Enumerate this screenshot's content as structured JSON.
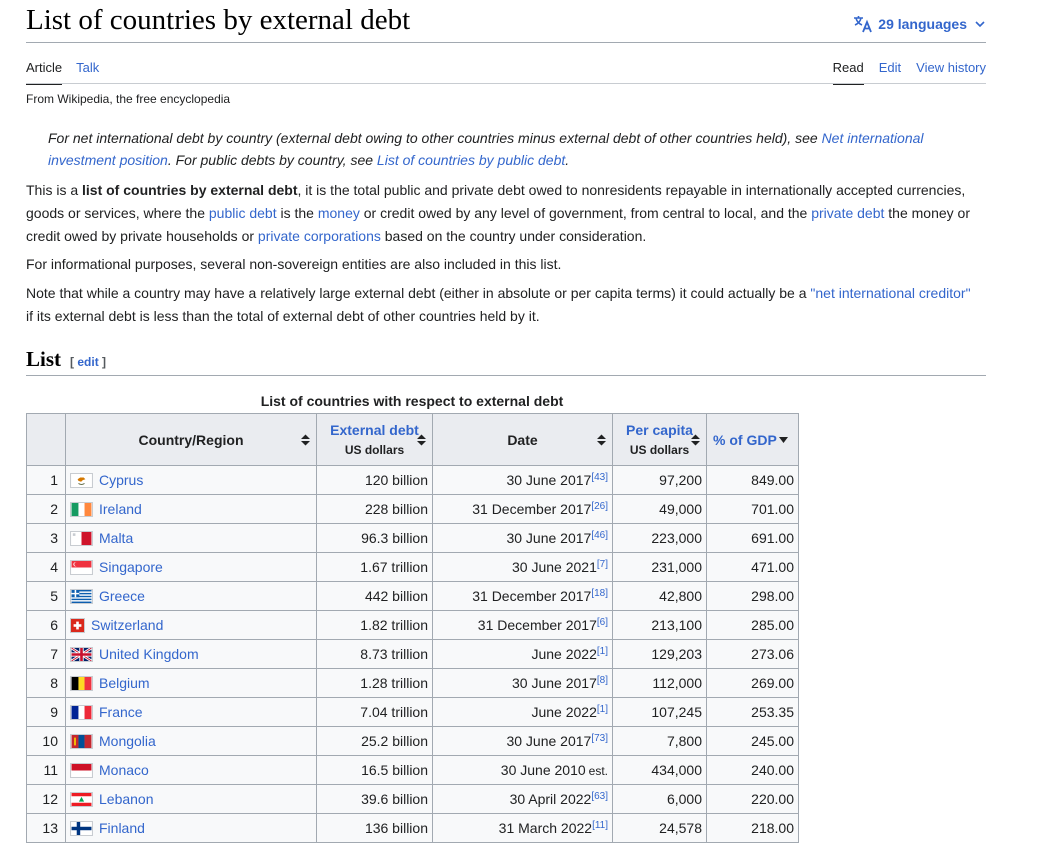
{
  "page": {
    "title": "List of countries by external debt",
    "languages": "29 languages",
    "tabs_left": [
      "Article",
      "Talk"
    ],
    "tabs_right": [
      "Read",
      "Edit",
      "View history"
    ],
    "tagline": "From Wikipedia, the free encyclopedia"
  },
  "hatnote": {
    "t1": "For net international debt by country (external debt owing to other countries minus external debt of other countries held), see ",
    "l1": "Net international investment position",
    "t2": ". For public debts by country, see ",
    "l2": "List of countries by public debt",
    "t3": "."
  },
  "intro": {
    "p1": {
      "t1": "This is a ",
      "b1": "list of countries by external debt",
      "t2": ", it is the total public and private debt owed to nonresidents repayable in internationally accepted currencies, goods or services, where the ",
      "l1": "public debt",
      "t3": " is the ",
      "l2": "money",
      "t4": " or credit owed by any level of government, from central to local, and the ",
      "l3": "private debt",
      "t5": " the money or credit owed by private households or ",
      "l4": "private corporations",
      "t6": " based on the country under consideration."
    },
    "p2": "For informational purposes, several non-sovereign entities are also included in this list.",
    "p3": {
      "t1": "Note that while a country may have a relatively large external debt (either in absolute or per capita terms) it could actually be a ",
      "l1": "\"net international creditor\"",
      "t2": " if its external debt is less than the total of external debt of other countries held by it."
    }
  },
  "section": {
    "heading": "List",
    "edit_open": "[ ",
    "edit": "edit",
    "edit_close": " ]"
  },
  "table": {
    "caption": "List of countries with respect to external debt",
    "headers": {
      "country": "Country/Region",
      "debt": "External debt",
      "debt_unit": "US dollars",
      "date": "Date",
      "percap": "Per capita",
      "percap_unit": "US dollars",
      "gdp": "% of GDP"
    },
    "rows": [
      {
        "rank": "1",
        "country": "Cyprus",
        "flag": "cyprus-flag-icon",
        "debt": "120 billion",
        "date": "30 June 2017",
        "ref": "[43]",
        "est": "",
        "percap": "97,200",
        "gdp": "849.00"
      },
      {
        "rank": "2",
        "country": "Ireland",
        "flag": "ireland-flag-icon",
        "debt": "228 billion",
        "date": "31 December 2017",
        "ref": "[26]",
        "est": "",
        "percap": "49,000",
        "gdp": "701.00"
      },
      {
        "rank": "3",
        "country": "Malta",
        "flag": "malta-flag-icon",
        "debt": "96.3 billion",
        "date": "30 June 2017",
        "ref": "[46]",
        "est": "",
        "percap": "223,000",
        "gdp": "691.00"
      },
      {
        "rank": "4",
        "country": "Singapore",
        "flag": "singapore-flag-icon",
        "debt": "1.67 trillion",
        "date": "30 June 2021",
        "ref": "[7]",
        "est": "",
        "percap": "231,000",
        "gdp": "471.00"
      },
      {
        "rank": "5",
        "country": "Greece",
        "flag": "greece-flag-icon",
        "debt": "442 billion",
        "date": "31 December 2017",
        "ref": "[18]",
        "est": "",
        "percap": "42,800",
        "gdp": "298.00"
      },
      {
        "rank": "6",
        "country": "Switzerland",
        "flag": "switzerland-flag-icon",
        "debt": "1.82 trillion",
        "date": "31 December 2017",
        "ref": "[6]",
        "est": "",
        "percap": "213,100",
        "gdp": "285.00"
      },
      {
        "rank": "7",
        "country": "United Kingdom",
        "flag": "united-kingdom-flag-icon",
        "debt": "8.73 trillion",
        "date": "June 2022",
        "ref": "[1]",
        "est": "",
        "percap": "129,203",
        "gdp": "273.06"
      },
      {
        "rank": "8",
        "country": "Belgium",
        "flag": "belgium-flag-icon",
        "debt": "1.28 trillion",
        "date": "30 June 2017",
        "ref": "[8]",
        "est": "",
        "percap": "112,000",
        "gdp": "269.00"
      },
      {
        "rank": "9",
        "country": "France",
        "flag": "france-flag-icon",
        "debt": "7.04 trillion",
        "date": "June 2022",
        "ref": "[1]",
        "est": "",
        "percap": "107,245",
        "gdp": "253.35"
      },
      {
        "rank": "10",
        "country": "Mongolia",
        "flag": "mongolia-flag-icon",
        "debt": "25.2 billion",
        "date": "30 June 2017",
        "ref": "[73]",
        "est": "",
        "percap": "7,800",
        "gdp": "245.00"
      },
      {
        "rank": "11",
        "country": "Monaco",
        "flag": "monaco-flag-icon",
        "debt": "16.5 billion",
        "date": "30 June 2010",
        "ref": "",
        "est": "est.",
        "percap": "434,000",
        "gdp": "240.00"
      },
      {
        "rank": "12",
        "country": "Lebanon",
        "flag": "lebanon-flag-icon",
        "debt": "39.6 billion",
        "date": "30 April 2022",
        "ref": "[63]",
        "est": "",
        "percap": "6,000",
        "gdp": "220.00"
      },
      {
        "rank": "13",
        "country": "Finland",
        "flag": "finland-flag-icon",
        "debt": "136 billion",
        "date": "31 March 2022",
        "ref": "[11]",
        "est": "",
        "percap": "24,578",
        "gdp": "218.00"
      }
    ]
  },
  "colors": {
    "link": "#3366cc",
    "text": "#202122",
    "header_bg": "#eaecf0",
    "border": "#a2a9b1"
  }
}
